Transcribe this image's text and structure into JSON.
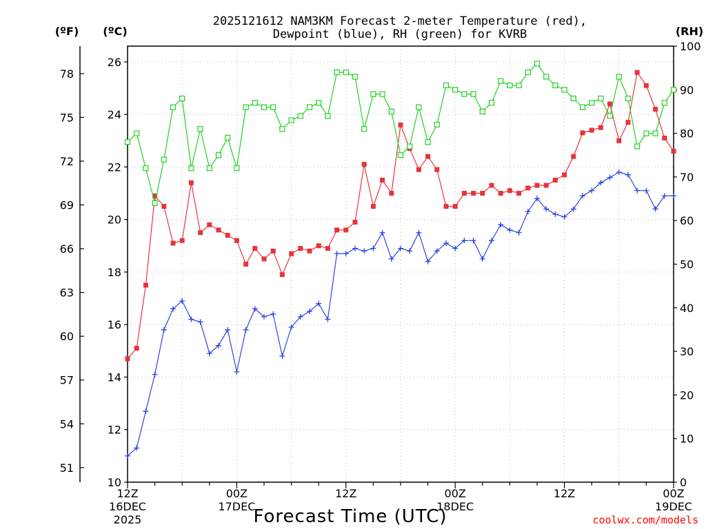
{
  "chart_data": {
    "type": "line",
    "title": "2025121612 NAM3KM Forecast 2-meter Temperature (red),",
    "subtitle": "Dewpoint (blue), RH (green) for KVRB",
    "xlabel": "Forecast Time (UTC)",
    "credit": "coolwx.com/models",
    "unit_labels": {
      "fahrenheit": "(ºF)",
      "celsius": "(ºC)",
      "rh": "(RH)"
    },
    "x_range_hours": [
      0,
      60
    ],
    "ylim_celsius": [
      10,
      26.6
    ],
    "ylim_rh": [
      0,
      100
    ],
    "grid": true,
    "x_ticks": [
      {
        "hour": 0,
        "line1": "12Z",
        "line2": "16DEC",
        "line3": "2025"
      },
      {
        "hour": 12,
        "line1": "00Z",
        "line2": "17DEC",
        "line3": ""
      },
      {
        "hour": 24,
        "line1": "12Z",
        "line2": "",
        "line3": ""
      },
      {
        "hour": 36,
        "line1": "00Z",
        "line2": "18DEC",
        "line3": ""
      },
      {
        "hour": 48,
        "line1": "12Z",
        "line2": "",
        "line3": ""
      },
      {
        "hour": 60,
        "line1": "00Z",
        "line2": "19DEC",
        "line3": ""
      }
    ],
    "celsius_ticks": [
      "10",
      "12",
      "14",
      "16",
      "18",
      "20",
      "22",
      "24",
      "26"
    ],
    "fahrenheit_ticks": [
      "51",
      "54",
      "57",
      "60",
      "63",
      "66",
      "69",
      "72",
      "75",
      "78"
    ],
    "rh_ticks": [
      "0",
      "10",
      "20",
      "30",
      "40",
      "50",
      "60",
      "70",
      "80",
      "90",
      "100"
    ],
    "series": [
      {
        "name": "Temperature",
        "units": "°C",
        "color": "#e8333c",
        "marker": "filled-square",
        "values": [
          14.7,
          15.1,
          17.5,
          20.9,
          20.5,
          19.1,
          19.2,
          21.4,
          19.5,
          19.8,
          19.6,
          19.4,
          19.2,
          18.3,
          18.9,
          18.5,
          18.8,
          17.9,
          18.7,
          18.9,
          18.8,
          19.0,
          18.9,
          19.6,
          19.6,
          19.9,
          22.1,
          20.5,
          21.5,
          21.0,
          23.6,
          22.7,
          21.9,
          22.4,
          21.9,
          20.5,
          20.5,
          21.0,
          21.0,
          21.0,
          21.3,
          21.0,
          21.1,
          21.0,
          21.2,
          21.3,
          21.3,
          21.5,
          21.7,
          22.4,
          23.3,
          23.4,
          23.5,
          24.4,
          23.0,
          23.7,
          25.6,
          25.1,
          24.2,
          23.1,
          22.6
        ]
      },
      {
        "name": "Dewpoint",
        "units": "°C",
        "color": "#2b44e0",
        "marker": "plus",
        "values": [
          11.0,
          11.3,
          12.7,
          14.1,
          15.8,
          16.6,
          16.9,
          16.2,
          16.1,
          14.9,
          15.2,
          15.8,
          14.2,
          15.8,
          16.6,
          16.3,
          16.4,
          14.8,
          15.9,
          16.3,
          16.5,
          16.8,
          16.2,
          18.7,
          18.7,
          18.9,
          18.8,
          18.9,
          19.5,
          18.5,
          18.9,
          18.8,
          19.5,
          18.4,
          18.8,
          19.1,
          18.9,
          19.2,
          19.2,
          18.5,
          19.2,
          19.8,
          19.6,
          19.5,
          20.3,
          20.8,
          20.4,
          20.2,
          20.1,
          20.4,
          20.9,
          21.1,
          21.4,
          21.6,
          21.8,
          21.7,
          21.1,
          21.1,
          20.4,
          20.9,
          20.9
        ]
      },
      {
        "name": "RH",
        "units": "%",
        "color": "#1fd11f",
        "marker": "open-square",
        "values": [
          78,
          80,
          72,
          64,
          74,
          86,
          88,
          72,
          81,
          72,
          75,
          79,
          72,
          86,
          87,
          86,
          86,
          81,
          83,
          84,
          86,
          87,
          84,
          94,
          94,
          93,
          81,
          89,
          89,
          85,
          75,
          77,
          86,
          78,
          82,
          91,
          90,
          89,
          89,
          85,
          87,
          92,
          91,
          91,
          94,
          96,
          93,
          91,
          90,
          88,
          86,
          87,
          88,
          84,
          93,
          88,
          77,
          80,
          80,
          87,
          90
        ]
      }
    ]
  }
}
